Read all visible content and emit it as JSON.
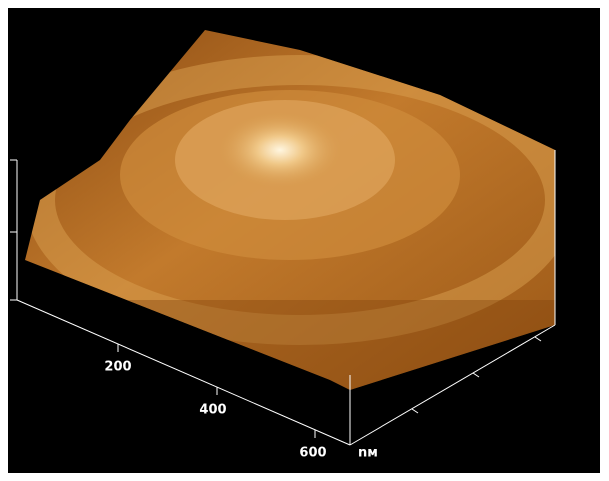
{
  "axis": {
    "tick_labels": [
      "200",
      "400",
      "600"
    ],
    "unit": "nм"
  }
}
